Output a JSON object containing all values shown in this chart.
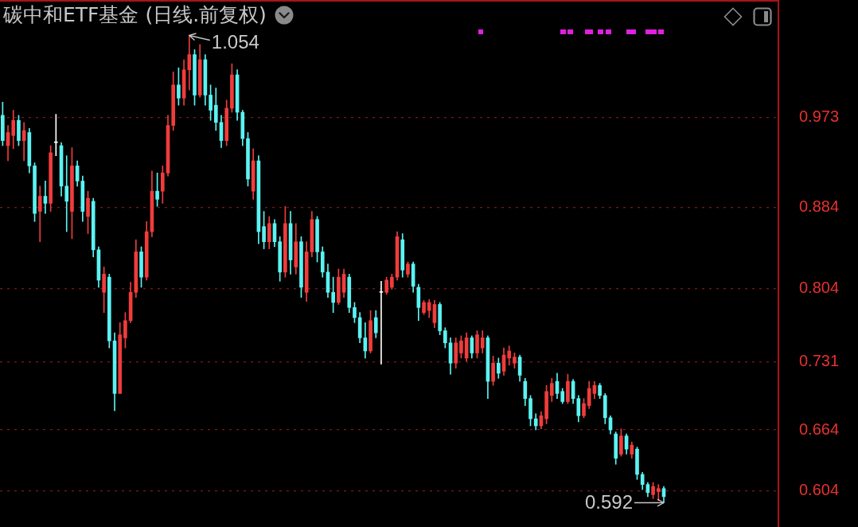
{
  "chart_data": {
    "type": "candlestick",
    "title": "碳中和ETF基金 (日线.前复权)",
    "categories": [
      null,
      null,
      null,
      null,
      null,
      null,
      null,
      null,
      null,
      null,
      null,
      null,
      null,
      null,
      null,
      null,
      null,
      null,
      null,
      null,
      null,
      null,
      null,
      null,
      null,
      null,
      null,
      null,
      null,
      null,
      null,
      null,
      null,
      null,
      null,
      null,
      null,
      null,
      null,
      null,
      null,
      null,
      null,
      null,
      null,
      null,
      null,
      null,
      null,
      null,
      null,
      null,
      null,
      null,
      null,
      null,
      null,
      null,
      null,
      null,
      null,
      null,
      null,
      null,
      null,
      null,
      null,
      null,
      null,
      null,
      null,
      null,
      null,
      null,
      null,
      null,
      null,
      null,
      null,
      null,
      null,
      null,
      null,
      null,
      null,
      null,
      null,
      null,
      null,
      null,
      null,
      null,
      null,
      null,
      null,
      null,
      null,
      null,
      null,
      null,
      null,
      null,
      null,
      null,
      null,
      null,
      null,
      null,
      null,
      null,
      null,
      null,
      null,
      null,
      null,
      null,
      null,
      null,
      null,
      null,
      null,
      null,
      null,
      null,
      null,
      null,
      null,
      null,
      null,
      null,
      null,
      null,
      null,
      null,
      null,
      null,
      null,
      null,
      null,
      null,
      null,
      null,
      null,
      null,
      null,
      null
    ],
    "ohlc": [
      [
        0.975,
        0.988,
        0.945,
        0.95
      ],
      [
        0.945,
        0.965,
        0.93,
        0.958
      ],
      [
        0.955,
        0.98,
        0.942,
        0.97
      ],
      [
        0.97,
        0.975,
        0.945,
        0.95
      ],
      [
        0.95,
        0.968,
        0.93,
        0.96
      ],
      [
        0.958,
        0.962,
        0.918,
        0.925
      ],
      [
        0.925,
        0.928,
        0.87,
        0.878
      ],
      [
        0.88,
        0.905,
        0.85,
        0.895
      ],
      [
        0.895,
        0.91,
        0.878,
        0.888
      ],
      [
        0.888,
        0.945,
        0.88,
        0.938
      ],
      [
        0.948,
        0.976,
        0.935,
        0.948
      ],
      [
        0.945,
        0.948,
        0.895,
        0.905
      ],
      [
        0.905,
        0.935,
        0.86,
        0.89
      ],
      [
        0.88,
        0.943,
        0.853,
        0.925
      ],
      [
        0.925,
        0.93,
        0.905,
        0.91
      ],
      [
        0.91,
        0.915,
        0.87,
        0.88
      ],
      [
        0.875,
        0.9,
        0.858,
        0.893
      ],
      [
        0.89,
        0.893,
        0.835,
        0.842
      ],
      [
        0.842,
        0.845,
        0.805,
        0.812
      ],
      [
        0.8,
        0.825,
        0.78,
        0.818
      ],
      [
        0.815,
        0.818,
        0.745,
        0.752
      ],
      [
        0.752,
        0.76,
        0.683,
        0.7
      ],
      [
        0.7,
        0.77,
        0.7,
        0.758
      ],
      [
        0.755,
        0.78,
        0.745,
        0.772
      ],
      [
        0.772,
        0.81,
        0.77,
        0.8
      ],
      [
        0.8,
        0.852,
        0.795,
        0.84
      ],
      [
        0.84,
        0.845,
        0.805,
        0.815
      ],
      [
        0.815,
        0.87,
        0.812,
        0.86
      ],
      [
        0.86,
        0.92,
        0.855,
        0.9
      ],
      [
        0.9,
        0.918,
        0.885,
        0.892
      ],
      [
        0.9,
        0.925,
        0.888,
        0.918
      ],
      [
        0.918,
        0.975,
        0.915,
        0.965
      ],
      [
        0.965,
        1.018,
        0.96,
        1.005
      ],
      [
        1.005,
        1.022,
        0.985,
        0.992
      ],
      [
        0.992,
        1.03,
        0.985,
        1.02
      ],
      [
        1.02,
        1.054,
        1.0,
        1.035
      ],
      [
        1.035,
        1.04,
        0.985,
        0.995
      ],
      [
        0.995,
        1.045,
        0.993,
        1.03
      ],
      [
        1.03,
        1.035,
        0.985,
        0.995
      ],
      [
        0.995,
        1.005,
        0.97,
        0.98
      ],
      [
        0.985,
        1.002,
        0.96,
        0.968
      ],
      [
        0.968,
        0.975,
        0.943,
        0.95
      ],
      [
        0.95,
        0.99,
        0.945,
        0.982
      ],
      [
        0.982,
        1.026,
        0.978,
        1.015
      ],
      [
        1.015,
        1.02,
        0.97,
        0.978
      ],
      [
        0.978,
        0.98,
        0.945,
        0.952
      ],
      [
        0.952,
        0.958,
        0.905,
        0.912
      ],
      [
        0.9,
        0.942,
        0.892,
        0.93
      ],
      [
        0.93,
        0.935,
        0.848,
        0.86
      ],
      [
        0.865,
        0.88,
        0.843,
        0.85
      ],
      [
        0.85,
        0.875,
        0.843,
        0.868
      ],
      [
        0.868,
        0.872,
        0.845,
        0.85
      ],
      [
        0.85,
        0.855,
        0.811,
        0.82
      ],
      [
        0.82,
        0.885,
        0.815,
        0.868
      ],
      [
        0.868,
        0.88,
        0.818,
        0.832
      ],
      [
        0.825,
        0.868,
        0.818,
        0.85
      ],
      [
        0.85,
        0.855,
        0.795,
        0.805
      ],
      [
        0.8,
        0.85,
        0.791,
        0.84
      ],
      [
        0.84,
        0.88,
        0.835,
        0.872
      ],
      [
        0.872,
        0.875,
        0.83,
        0.84
      ],
      [
        0.84,
        0.845,
        0.815,
        0.82
      ],
      [
        0.82,
        0.828,
        0.795,
        0.8
      ],
      [
        0.8,
        0.815,
        0.78,
        0.79
      ],
      [
        0.79,
        0.823,
        0.788,
        0.815
      ],
      [
        0.8,
        0.823,
        0.795,
        0.818
      ],
      [
        0.815,
        0.818,
        0.78,
        0.785
      ],
      [
        0.785,
        0.79,
        0.77,
        0.775
      ],
      [
        0.775,
        0.78,
        0.75,
        0.755
      ],
      [
        0.755,
        0.77,
        0.735,
        0.742
      ],
      [
        0.742,
        0.782,
        0.74,
        0.772
      ],
      [
        0.775,
        0.782,
        0.755,
        0.76
      ],
      [
        0.8,
        0.811,
        0.729,
        0.8
      ],
      [
        0.8,
        0.815,
        0.798,
        0.812
      ],
      [
        0.805,
        0.818,
        0.803,
        0.815
      ],
      [
        0.815,
        0.86,
        0.812,
        0.855
      ],
      [
        0.852,
        0.858,
        0.815,
        0.822
      ],
      [
        0.818,
        0.83,
        0.815,
        0.828
      ],
      [
        0.828,
        0.83,
        0.8,
        0.806
      ],
      [
        0.805,
        0.808,
        0.772,
        0.785
      ],
      [
        0.78,
        0.792,
        0.778,
        0.79
      ],
      [
        0.782,
        0.793,
        0.775,
        0.79
      ],
      [
        0.77,
        0.792,
        0.765,
        0.788
      ],
      [
        0.788,
        0.79,
        0.758,
        0.762
      ],
      [
        0.762,
        0.765,
        0.745,
        0.75
      ],
      [
        0.75,
        0.755,
        0.719,
        0.73
      ],
      [
        0.73,
        0.755,
        0.725,
        0.75
      ],
      [
        0.74,
        0.757,
        0.735,
        0.752
      ],
      [
        0.735,
        0.76,
        0.732,
        0.755
      ],
      [
        0.755,
        0.757,
        0.735,
        0.74
      ],
      [
        0.74,
        0.762,
        0.735,
        0.758
      ],
      [
        0.745,
        0.762,
        0.74,
        0.755
      ],
      [
        0.755,
        0.757,
        0.695,
        0.712
      ],
      [
        0.712,
        0.737,
        0.708,
        0.73
      ],
      [
        0.73,
        0.735,
        0.715,
        0.72
      ],
      [
        0.722,
        0.745,
        0.718,
        0.738
      ],
      [
        0.735,
        0.747,
        0.728,
        0.742
      ],
      [
        0.73,
        0.74,
        0.725,
        0.736
      ],
      [
        0.736,
        0.738,
        0.712,
        0.718
      ],
      [
        0.712,
        0.715,
        0.688,
        0.695
      ],
      [
        0.695,
        0.698,
        0.668,
        0.675
      ],
      [
        0.675,
        0.68,
        0.664,
        0.668
      ],
      [
        0.668,
        0.682,
        0.665,
        0.678
      ],
      [
        0.675,
        0.708,
        0.67,
        0.702
      ],
      [
        0.698,
        0.715,
        0.692,
        0.71
      ],
      [
        0.712,
        0.72,
        0.695,
        0.7
      ],
      [
        0.702,
        0.705,
        0.69,
        0.692
      ],
      [
        0.692,
        0.719,
        0.69,
        0.712
      ],
      [
        0.712,
        0.714,
        0.69,
        0.695
      ],
      [
        0.695,
        0.698,
        0.672,
        0.678
      ],
      [
        0.678,
        0.695,
        0.676,
        0.69
      ],
      [
        0.688,
        0.712,
        0.685,
        0.705
      ],
      [
        0.7,
        0.712,
        0.695,
        0.708
      ],
      [
        0.708,
        0.71,
        0.695,
        0.698
      ],
      [
        0.698,
        0.7,
        0.67,
        0.676
      ],
      [
        0.676,
        0.678,
        0.66,
        0.664
      ],
      [
        0.66,
        0.662,
        0.63,
        0.636
      ],
      [
        0.64,
        0.665,
        0.638,
        0.658
      ],
      [
        0.658,
        0.66,
        0.64,
        0.645
      ],
      [
        0.64,
        0.652,
        0.636,
        0.649
      ],
      [
        0.645,
        0.647,
        0.615,
        0.62
      ],
      [
        0.62,
        0.622,
        0.605,
        0.61
      ],
      [
        0.61,
        0.612,
        0.598,
        0.602
      ],
      [
        0.6,
        0.612,
        0.596,
        0.608
      ],
      [
        0.603,
        0.61,
        0.594,
        0.606
      ],
      [
        0.606,
        0.608,
        0.592,
        0.598
      ],
      null,
      null,
      null,
      null,
      null,
      null,
      null,
      null,
      null,
      null,
      null,
      null,
      null,
      null,
      null,
      null,
      null,
      null,
      null,
      null,
      null
    ],
    "colors": [
      "#5cf2f2",
      "#f03c3c",
      "#f03c3c",
      "#5cf2f2",
      "#f03c3c",
      "#5cf2f2",
      "#5cf2f2",
      "#f03c3c",
      "#5cf2f2",
      "#f03c3c",
      "#ffffff",
      "#5cf2f2",
      "#5cf2f2",
      "#f03c3c",
      "#5cf2f2",
      "#5cf2f2",
      "#f03c3c",
      "#5cf2f2",
      "#5cf2f2",
      "#f03c3c",
      "#5cf2f2",
      "#5cf2f2",
      "#f03c3c",
      "#f03c3c",
      "#f03c3c",
      "#f03c3c",
      "#5cf2f2",
      "#f03c3c",
      "#f03c3c",
      "#5cf2f2",
      "#f03c3c",
      "#f03c3c",
      "#f03c3c",
      "#5cf2f2",
      "#f03c3c",
      "#f03c3c",
      "#5cf2f2",
      "#f03c3c",
      "#5cf2f2",
      "#5cf2f2",
      "#5cf2f2",
      "#5cf2f2",
      "#f03c3c",
      "#f03c3c",
      "#5cf2f2",
      "#5cf2f2",
      "#5cf2f2",
      "#f03c3c",
      "#5cf2f2",
      "#5cf2f2",
      "#f03c3c",
      "#5cf2f2",
      "#5cf2f2",
      "#f03c3c",
      "#5cf2f2",
      "#f03c3c",
      "#5cf2f2",
      "#f03c3c",
      "#f03c3c",
      "#5cf2f2",
      "#5cf2f2",
      "#5cf2f2",
      "#5cf2f2",
      "#f03c3c",
      "#f03c3c",
      "#5cf2f2",
      "#5cf2f2",
      "#5cf2f2",
      "#5cf2f2",
      "#f03c3c",
      "#5cf2f2",
      "#ffffff",
      "#f03c3c",
      "#f03c3c",
      "#f03c3c",
      "#5cf2f2",
      "#f03c3c",
      "#5cf2f2",
      "#5cf2f2",
      "#f03c3c",
      "#f03c3c",
      "#f03c3c",
      "#5cf2f2",
      "#5cf2f2",
      "#5cf2f2",
      "#f03c3c",
      "#f03c3c",
      "#f03c3c",
      "#5cf2f2",
      "#f03c3c",
      "#f03c3c",
      "#5cf2f2",
      "#f03c3c",
      "#5cf2f2",
      "#f03c3c",
      "#f03c3c",
      "#f03c3c",
      "#5cf2f2",
      "#5cf2f2",
      "#5cf2f2",
      "#5cf2f2",
      "#f03c3c",
      "#f03c3c",
      "#f03c3c",
      "#5cf2f2",
      "#5cf2f2",
      "#f03c3c",
      "#5cf2f2",
      "#5cf2f2",
      "#f03c3c",
      "#f03c3c",
      "#f03c3c",
      "#5cf2f2",
      "#5cf2f2",
      "#5cf2f2",
      "#5cf2f2",
      "#f03c3c",
      "#5cf2f2",
      "#f03c3c",
      "#5cf2f2",
      "#5cf2f2",
      "#5cf2f2",
      "#f03c3c",
      "#f03c3c",
      "#5cf2f2",
      null,
      null,
      null,
      null,
      null,
      null,
      null,
      null,
      null,
      null,
      null,
      null,
      null,
      null,
      null,
      null,
      null,
      null,
      null,
      null,
      null
    ],
    "ylim": [
      0.568,
      1.089
    ],
    "yticks": [
      0.604,
      0.664,
      0.731,
      0.804,
      0.884,
      0.973
    ],
    "grid": "y",
    "tick_labels": "y",
    "annotations": [
      "1.054",
      "0.592"
    ]
  }
}
